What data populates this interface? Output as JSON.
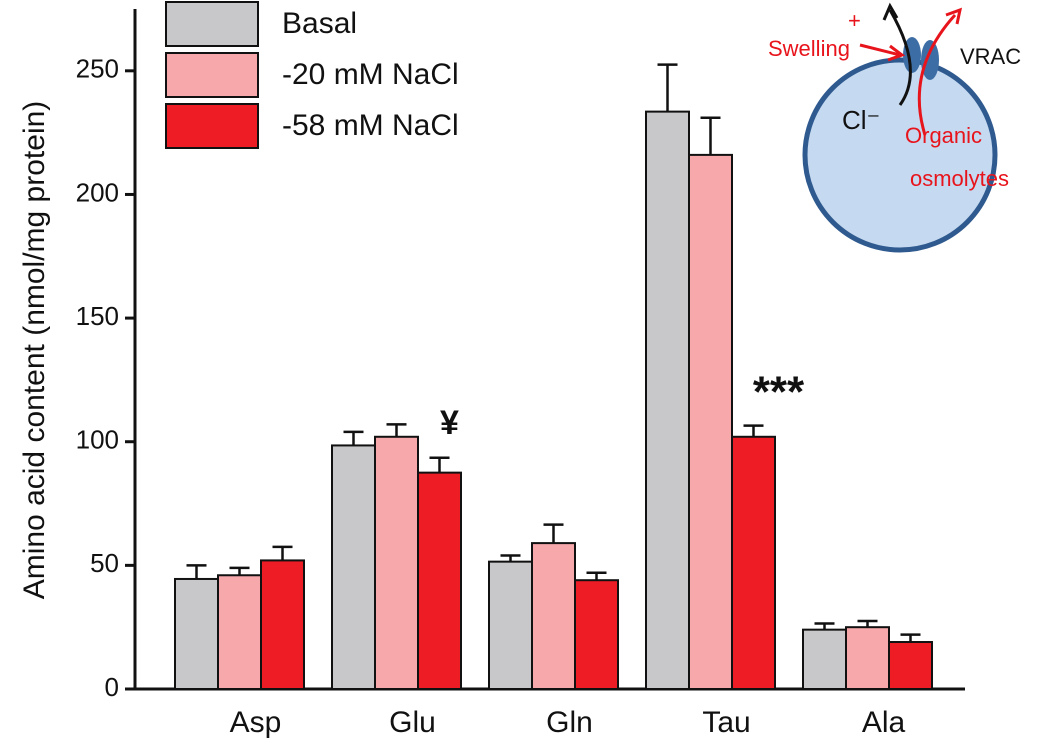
{
  "chart_data": {
    "type": "bar",
    "ylabel": "Amino acid content (nmol/mg protein)",
    "categories": [
      "Asp",
      "Glu",
      "Gln",
      "Tau",
      "Ala"
    ],
    "series": [
      {
        "name": "Basal",
        "color": "#c8c8ca",
        "values": [
          44.5,
          98.5,
          51.5,
          233.5,
          24
        ],
        "errors": [
          5.5,
          5.5,
          2.5,
          19,
          2.5
        ]
      },
      {
        "name": "-20 mM NaCl",
        "color": "#f6a8ab",
        "values": [
          46,
          102,
          59,
          216,
          25
        ],
        "errors": [
          3,
          5,
          7.5,
          15,
          2.5
        ]
      },
      {
        "name": "-58 mM NaCl",
        "color": "#ee1c25",
        "values": [
          52,
          87.5,
          44,
          102,
          19
        ],
        "errors": [
          5.5,
          6,
          3,
          4.5,
          3
        ]
      }
    ],
    "annotations": [
      "¥",
      "***"
    ],
    "ylim": [
      0,
      275
    ],
    "yticks": [
      0,
      50,
      100,
      150,
      200,
      250
    ]
  },
  "inset": {
    "swelling": "Swelling",
    "plus": "+",
    "vrac": "VRAC",
    "chloride": "Cl⁻",
    "organic": "Organic",
    "osmolytes": "osmolytes"
  }
}
